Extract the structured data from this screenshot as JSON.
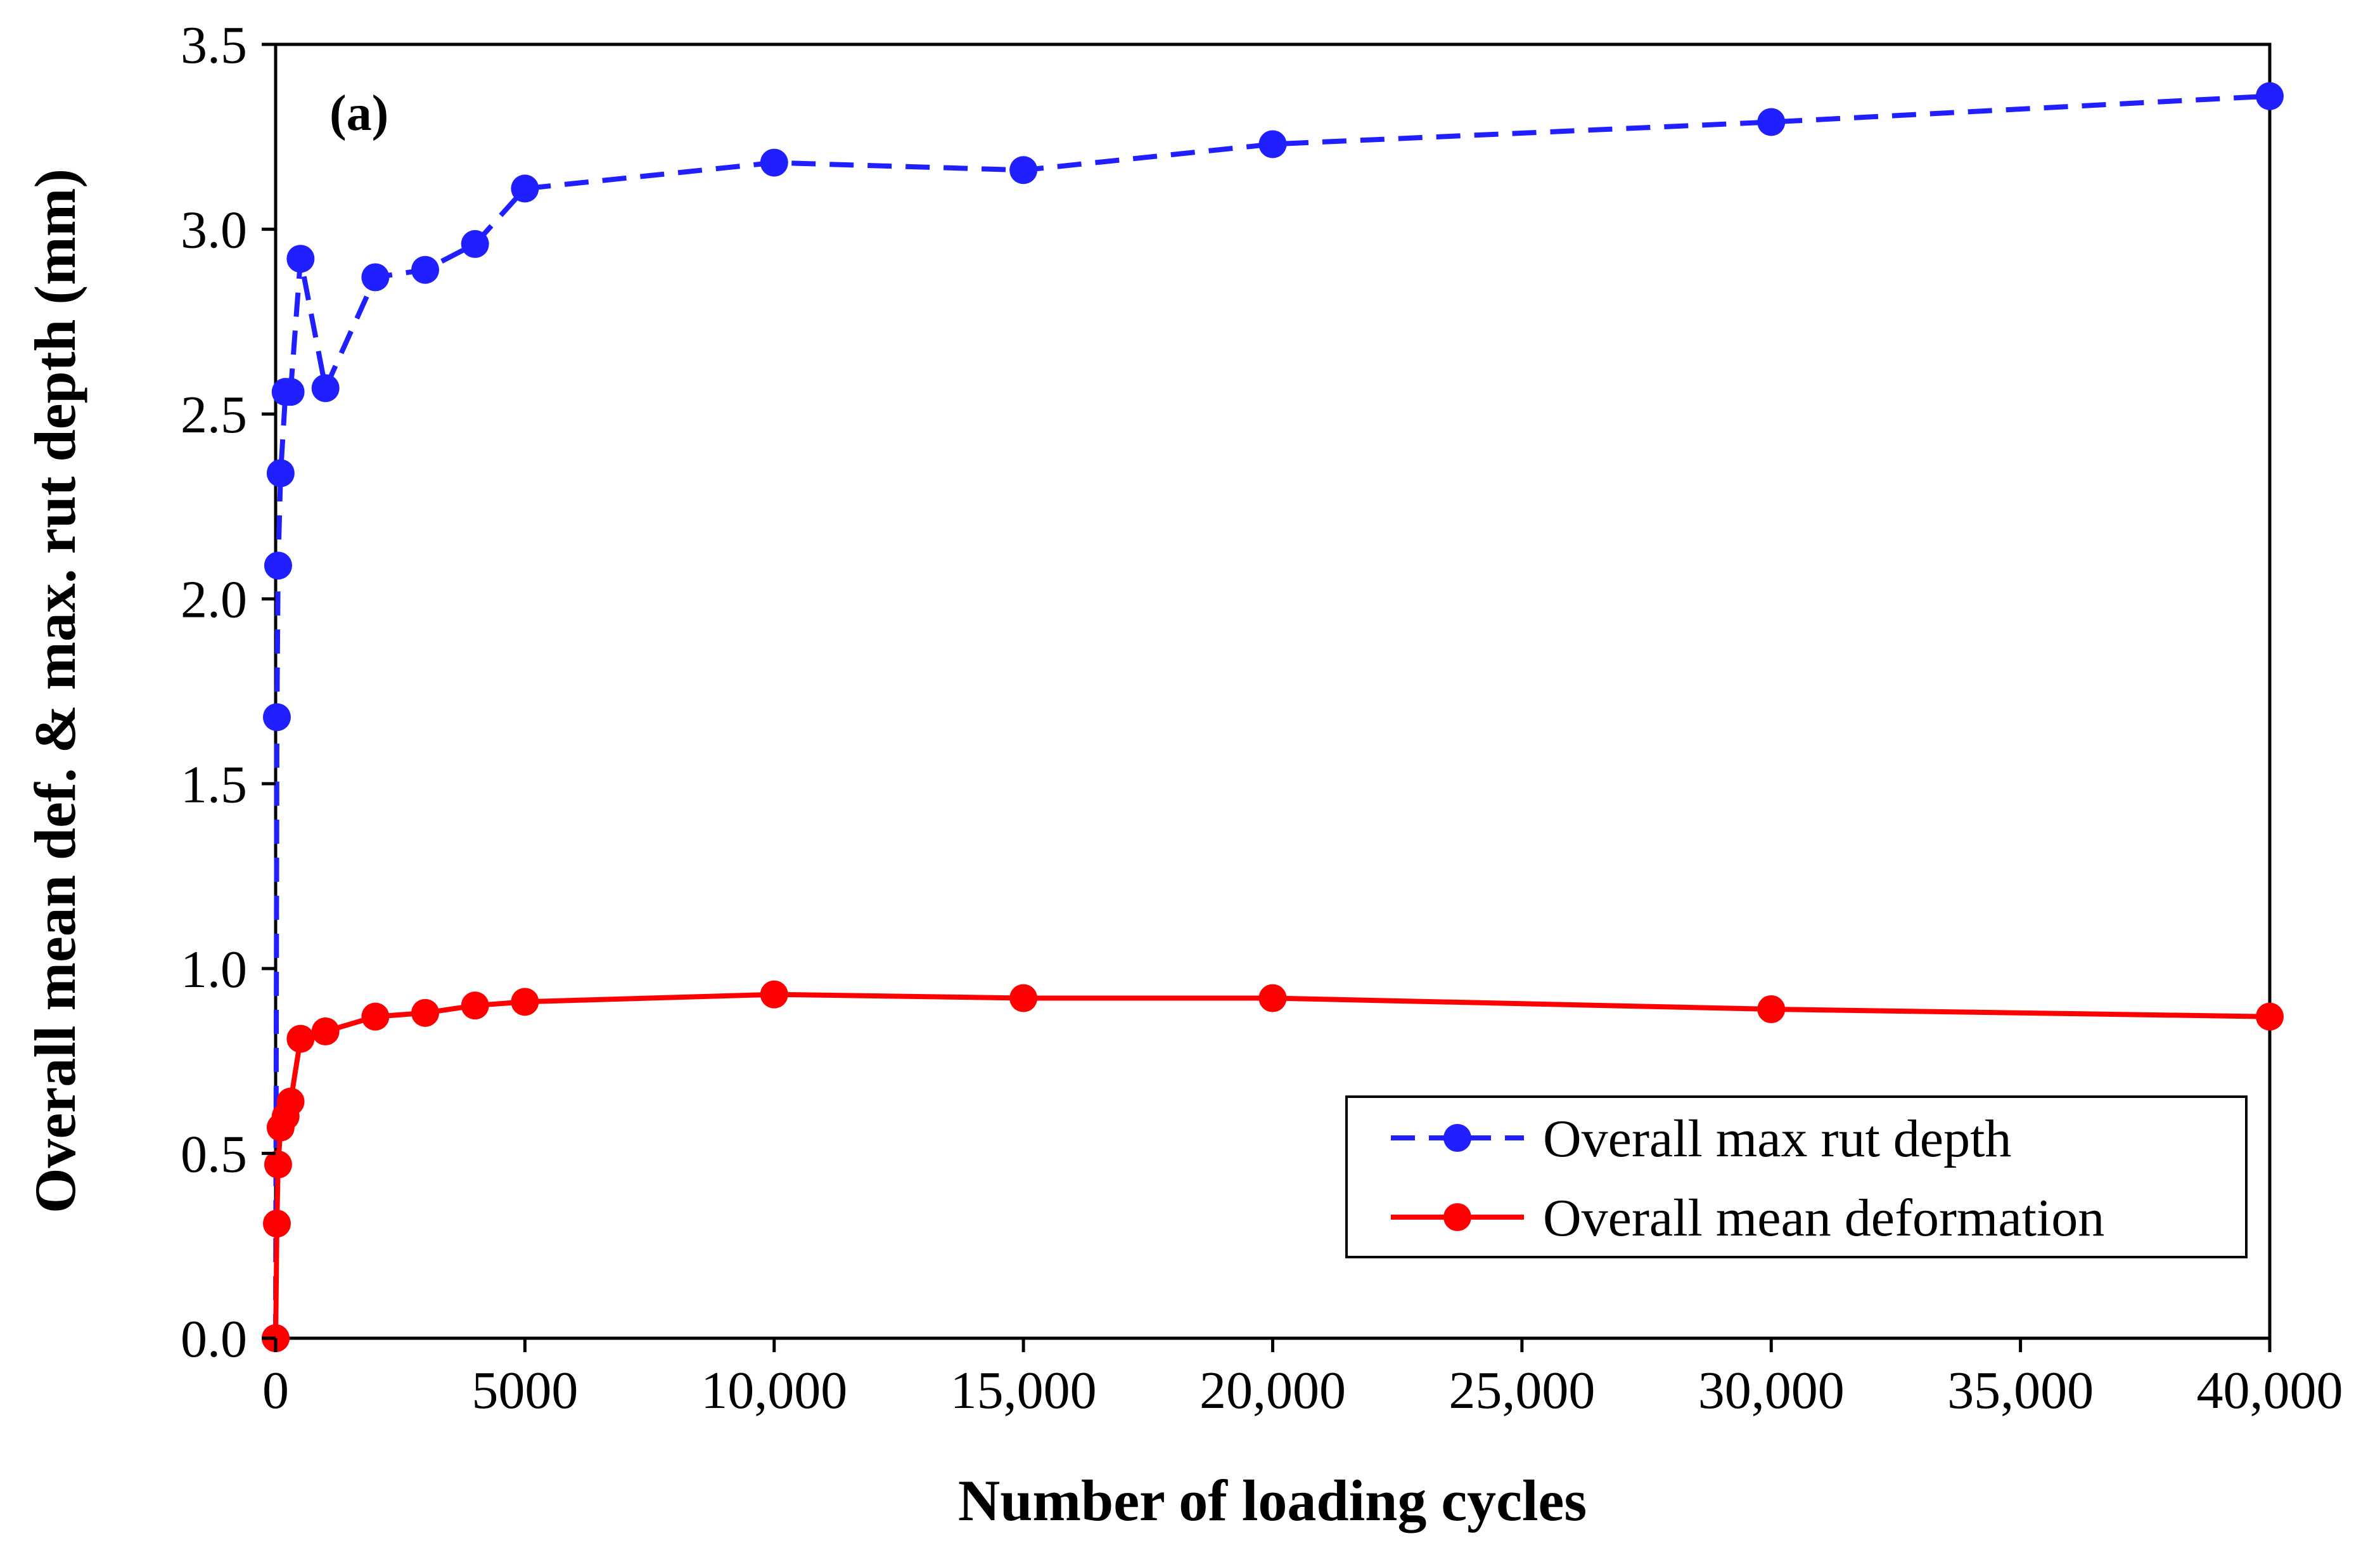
{
  "chart_data": {
    "type": "line",
    "panel_label": "(a)",
    "xlabel": "Number of loading cycles",
    "ylabel": "Overall mean def. & max. rut depth (mm)",
    "xlim": [
      0,
      40000
    ],
    "ylim": [
      0,
      3.5
    ],
    "x_ticks": [
      0,
      5000,
      10000,
      15000,
      20000,
      25000,
      30000,
      35000,
      40000
    ],
    "x_tick_labels": [
      "0",
      "5000",
      "10,000",
      "15,000",
      "20,000",
      "25,000",
      "30,000",
      "35,000",
      "40,000"
    ],
    "y_ticks": [
      0,
      0.5,
      1.0,
      1.5,
      2.0,
      2.5,
      3.0,
      3.5
    ],
    "y_tick_labels": [
      "0.0",
      "0.5",
      "1.0",
      "1.5",
      "2.0",
      "2.5",
      "3.0",
      "3.5"
    ],
    "grid": false,
    "legend_position": "lower-right",
    "series": [
      {
        "name": "Overall max rut depth",
        "color": "#1f1fff",
        "line_style": "dashed",
        "marker": "circle",
        "x": [
          0,
          25,
          50,
          100,
          200,
          300,
          500,
          1000,
          2000,
          3000,
          4000,
          5000,
          10000,
          15000,
          20000,
          30000,
          40000
        ],
        "y": [
          0.0,
          1.68,
          2.09,
          2.34,
          2.56,
          2.56,
          2.92,
          2.57,
          2.87,
          2.89,
          2.96,
          3.11,
          3.18,
          3.16,
          3.23,
          3.29,
          3.36
        ]
      },
      {
        "name": "Overall mean deformation",
        "color": "#ff0000",
        "line_style": "solid",
        "marker": "circle",
        "x": [
          0,
          25,
          50,
          100,
          200,
          300,
          500,
          1000,
          2000,
          3000,
          4000,
          5000,
          10000,
          15000,
          20000,
          30000,
          40000
        ],
        "y": [
          0.0,
          0.31,
          0.47,
          0.57,
          0.6,
          0.64,
          0.81,
          0.83,
          0.87,
          0.88,
          0.9,
          0.91,
          0.93,
          0.92,
          0.92,
          0.89,
          0.87
        ]
      }
    ]
  }
}
